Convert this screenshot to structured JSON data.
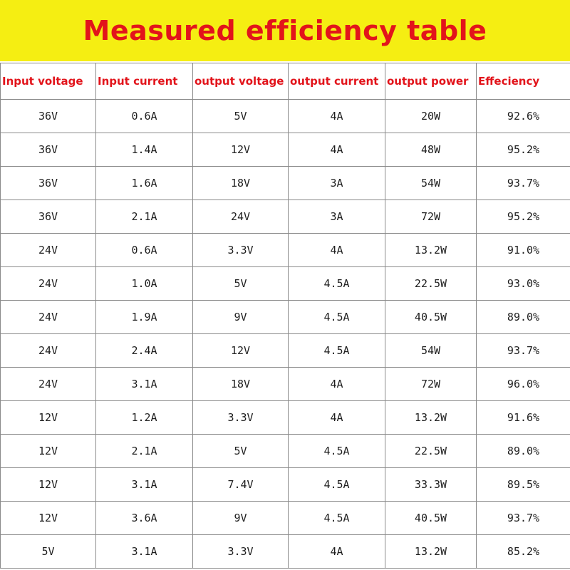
{
  "title": "Measured efficiency table",
  "colors": {
    "banner_bg": "#f5ee12",
    "title": "#e2141b",
    "header_text": "#e2141b"
  },
  "headers": [
    "Input voltage",
    "Input current",
    "output voltage",
    "output current",
    "output power",
    "Effeciency"
  ],
  "rows": [
    [
      "36V",
      "0.6A",
      "5V",
      "4A",
      "20W",
      "92.6%"
    ],
    [
      "36V",
      "1.4A",
      "12V",
      "4A",
      "48W",
      "95.2%"
    ],
    [
      "36V",
      "1.6A",
      "18V",
      "3A",
      "54W",
      "93.7%"
    ],
    [
      "36V",
      "2.1A",
      "24V",
      "3A",
      "72W",
      "95.2%"
    ],
    [
      "24V",
      "0.6A",
      "3.3V",
      "4A",
      "13.2W",
      "91.0%"
    ],
    [
      "24V",
      "1.0A",
      "5V",
      "4.5A",
      "22.5W",
      "93.0%"
    ],
    [
      "24V",
      "1.9A",
      "9V",
      "4.5A",
      "40.5W",
      "89.0%"
    ],
    [
      "24V",
      "2.4A",
      "12V",
      "4.5A",
      "54W",
      "93.7%"
    ],
    [
      "24V",
      "3.1A",
      "18V",
      "4A",
      "72W",
      "96.0%"
    ],
    [
      "12V",
      "1.2A",
      "3.3V",
      "4A",
      "13.2W",
      "91.6%"
    ],
    [
      "12V",
      "2.1A",
      "5V",
      "4.5A",
      "22.5W",
      "89.0%"
    ],
    [
      "12V",
      "3.1A",
      "7.4V",
      "4.5A",
      "33.3W",
      "89.5%"
    ],
    [
      "12V",
      "3.6A",
      "9V",
      "4.5A",
      "40.5W",
      "93.7%"
    ],
    [
      "5V",
      "3.1A",
      "3.3V",
      "4A",
      "13.2W",
      "85.2%"
    ]
  ]
}
